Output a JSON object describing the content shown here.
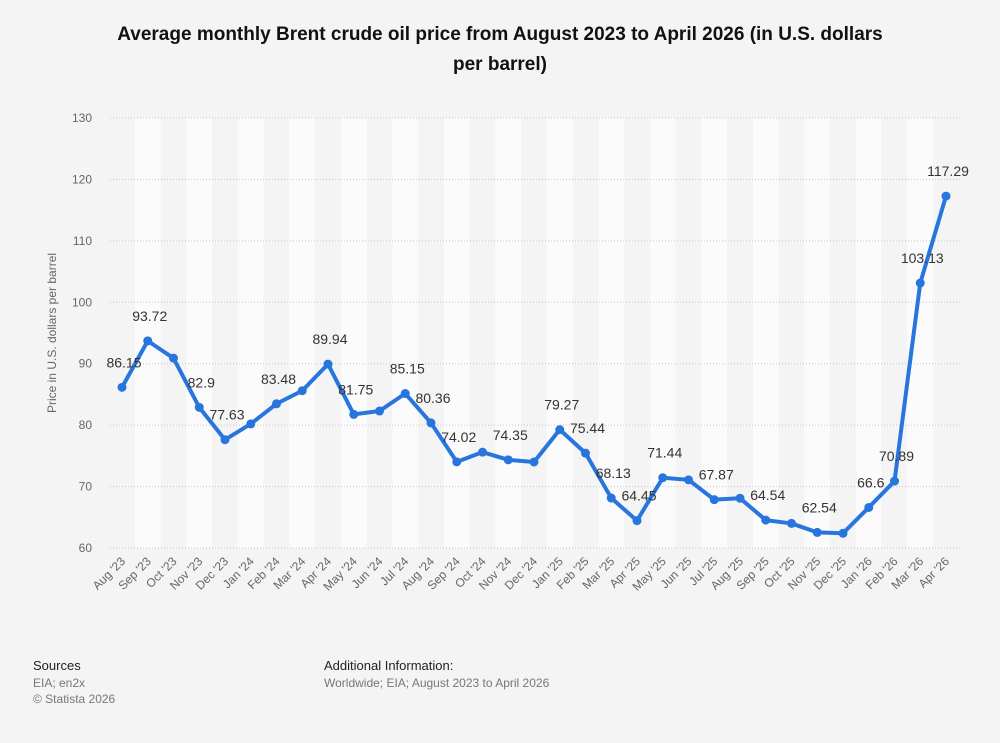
{
  "chart_data": {
    "type": "line",
    "title": [
      "Average monthly Brent crude oil price from August 2023 to April 2026 (in U.S. dollars",
      "per barrel)"
    ],
    "y_label": "Price in U.S. dollars per barrel",
    "categories": [
      "Aug '23",
      "Sep '23",
      "Oct '23",
      "Nov '23",
      "Dec '23",
      "Jan '24",
      "Feb '24",
      "Mar '24",
      "Apr '24",
      "May '24",
      "Jun '24",
      "Jul '24",
      "Aug '24",
      "Sep '24",
      "Oct '24",
      "Nov '24",
      "Dec '24",
      "Jan '25",
      "Feb '25",
      "Mar '25",
      "Apr '25",
      "May '25",
      "Jun '25",
      "Jul '25",
      "Aug '25",
      "Sep '25",
      "Oct '25",
      "Nov '25",
      "Dec '25",
      "Jan '26",
      "Feb '26",
      "Mar '26",
      "Apr '26"
    ],
    "values": [
      86.15,
      93.72,
      90.9,
      82.9,
      77.63,
      80.2,
      83.48,
      85.6,
      89.94,
      81.75,
      82.3,
      85.15,
      80.36,
      74.02,
      75.6,
      74.35,
      74.0,
      79.27,
      75.44,
      68.13,
      64.45,
      71.44,
      71.1,
      67.87,
      68.1,
      64.54,
      64.0,
      62.54,
      62.4,
      66.6,
      70.89,
      103.13,
      117.29
    ],
    "value_labels": [
      "86.15",
      "93.72",
      null,
      "82.9",
      "77.63",
      null,
      "83.48",
      null,
      "89.94",
      "81.75",
      null,
      "85.15",
      "80.36",
      "74.02",
      null,
      "74.35",
      null,
      "79.27",
      "75.44",
      "68.13",
      "64.45",
      "71.44",
      null,
      "67.87",
      null,
      "64.54",
      null,
      "62.54",
      null,
      "66.6",
      "70.89",
      "103.13",
      "117.29"
    ],
    "color": "#2876dd",
    "ylim": [
      60,
      130
    ],
    "yticks": [
      60,
      70,
      80,
      90,
      100,
      110,
      120,
      130
    ],
    "grid": true
  },
  "footer": {
    "sources_heading": "Sources",
    "sources": "EIA; en2x",
    "copyright": "© Statista 2026",
    "info_heading": "Additional Information:",
    "info": "Worldwide; EIA; August 2023 to April 2026"
  }
}
